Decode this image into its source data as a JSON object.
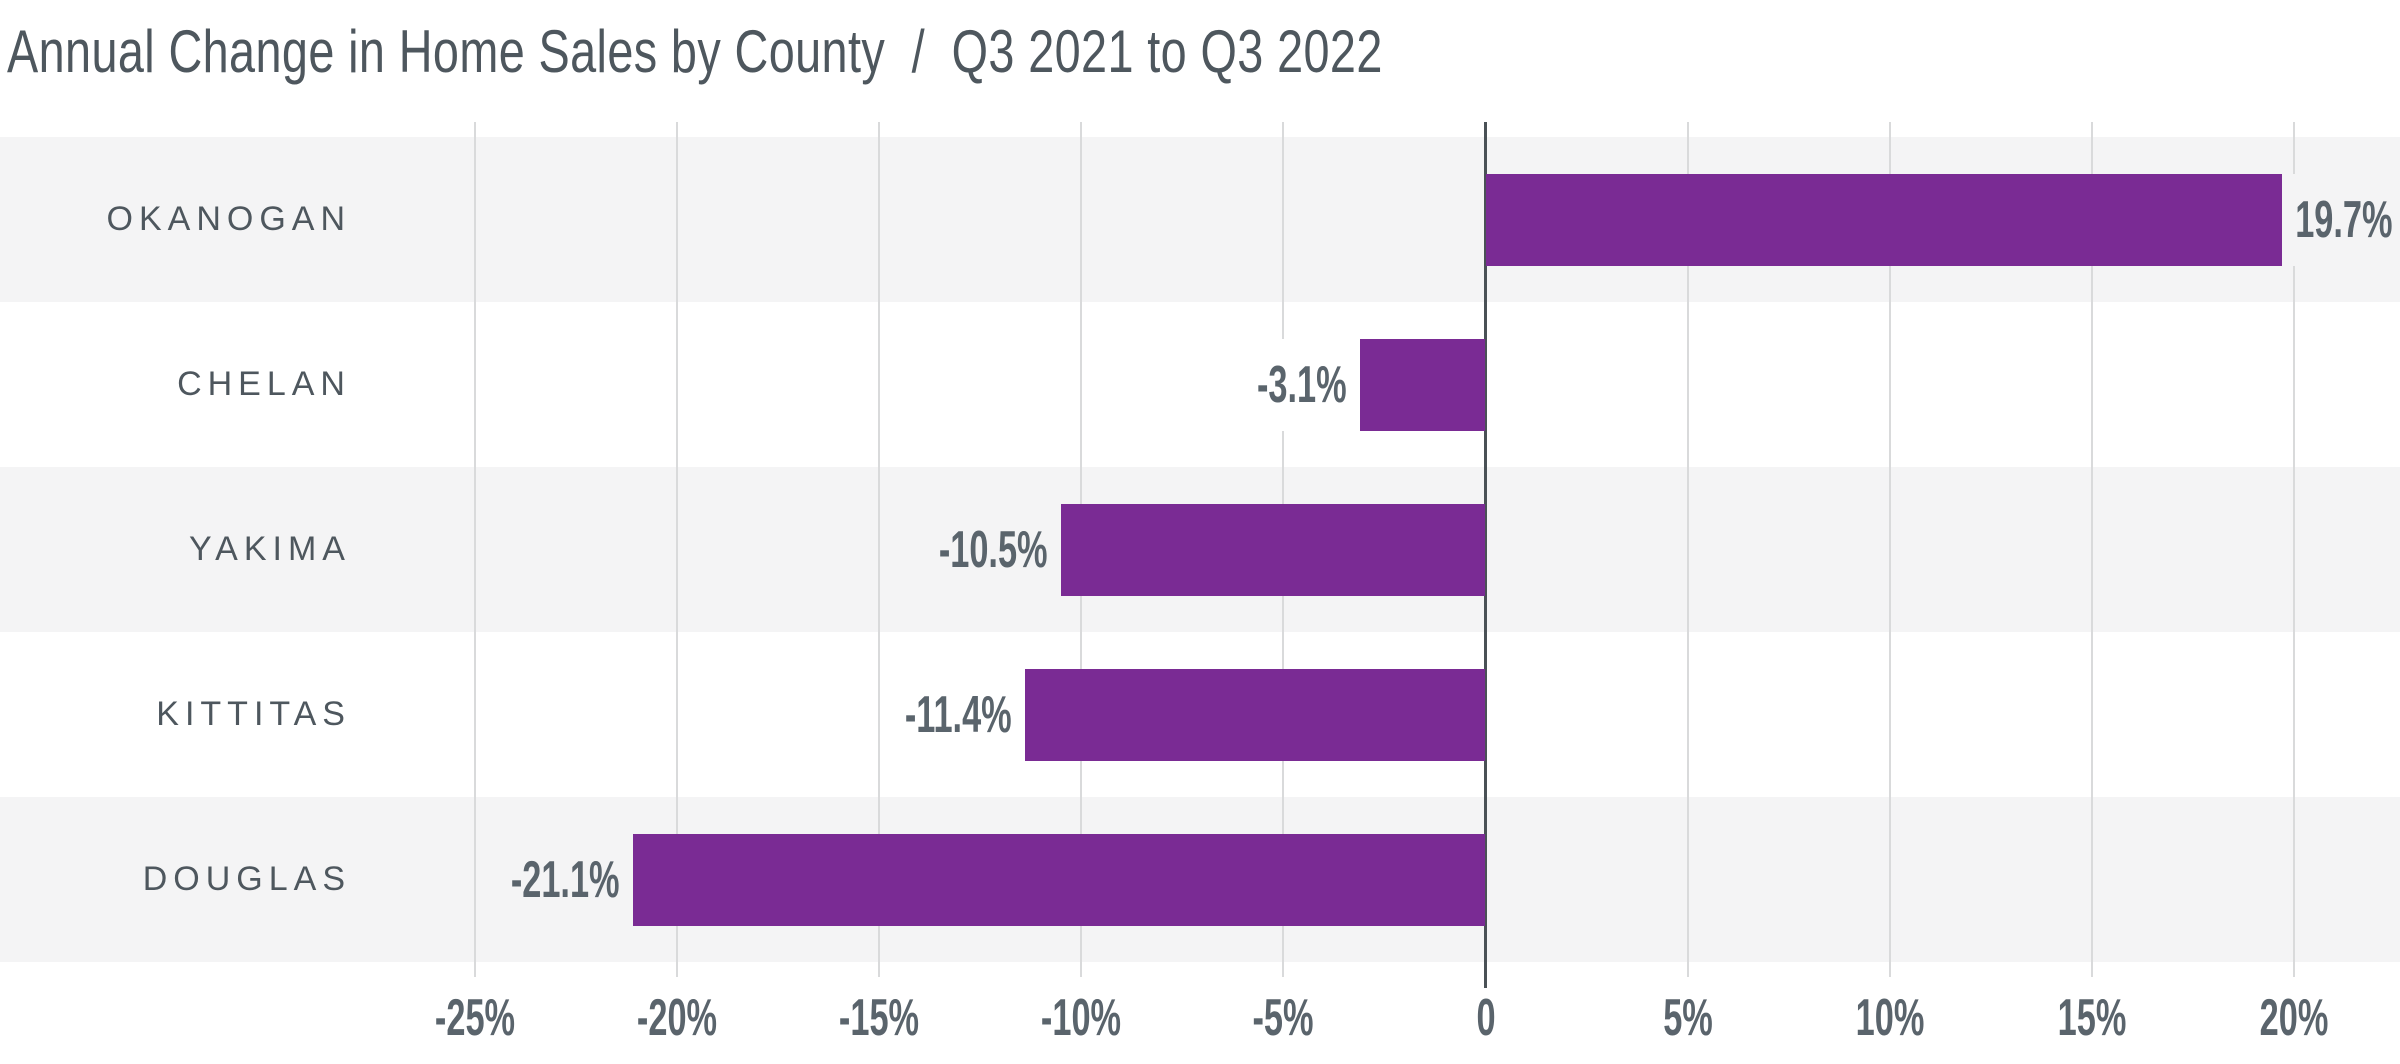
{
  "title": {
    "main": "Annual Change in Home Sales by County",
    "separator": "/",
    "period": "Q3 2021 to Q3 2022"
  },
  "chart_data": {
    "type": "bar",
    "orientation": "horizontal",
    "title": "Annual Change in Home Sales by County / Q3 2021 to Q3 2022",
    "categories": [
      "OKANOGAN",
      "CHELAN",
      "YAKIMA",
      "KITTITAS",
      "DOUGLAS"
    ],
    "values": [
      19.7,
      -3.1,
      -10.5,
      -11.4,
      -21.1
    ],
    "value_labels": [
      "19.7%",
      "-3.1%",
      "-10.5%",
      "-11.4%",
      "-21.1%"
    ],
    "x_ticks": [
      -25,
      -20,
      -15,
      -10,
      -5,
      0,
      5,
      10,
      15,
      20
    ],
    "x_tick_labels": [
      "-25%",
      "-20%",
      "-15%",
      "-10%",
      "-5%",
      "0",
      "5%",
      "10%",
      "15%",
      "20%"
    ],
    "xlabel": "",
    "ylabel": "",
    "xlim": [
      -25,
      20
    ],
    "grid": true,
    "legend": null,
    "bar_color": "#7a2b94",
    "row_stripe_color": "#f4f4f5",
    "row_alt_color": "#ffffff",
    "gridline_color": "#d9dadb",
    "zero_line_color": "#4a5156",
    "label_color": "#4e575e",
    "number_color": "#5a646c"
  }
}
